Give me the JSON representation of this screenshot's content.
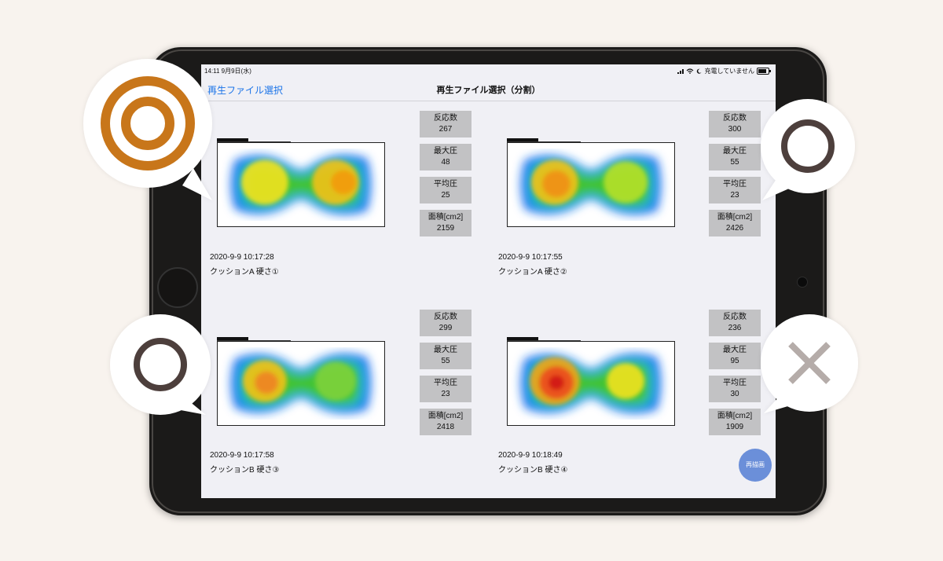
{
  "status_bar": {
    "time": "14:11  9月9日(水)",
    "charging": "充電していません"
  },
  "nav": {
    "back_label": "再生ファイル選択",
    "title": "再生ファイル選択（分割）"
  },
  "metric_labels": {
    "reactions": "反応数",
    "max_pressure": "最大圧",
    "avg_pressure": "平均圧",
    "area": "面積[cm2]"
  },
  "records": [
    {
      "timestamp": "2020-9-9 10:17:28",
      "name": "クッションA 硬さ①",
      "reactions": "267",
      "max_pressure": "48",
      "avg_pressure": "25",
      "area": "2159",
      "rating_icon": "double-circle-icon",
      "rating_color": "#c8761a"
    },
    {
      "timestamp": "2020-9-9 10:17:55",
      "name": "クッションA 硬さ②",
      "reactions": "300",
      "max_pressure": "55",
      "avg_pressure": "23",
      "area": "2426",
      "rating_icon": "circle-icon",
      "rating_color": "#4d3f3c"
    },
    {
      "timestamp": "2020-9-9 10:17:58",
      "name": "クッションB 硬さ③",
      "reactions": "299",
      "max_pressure": "55",
      "avg_pressure": "23",
      "area": "2418",
      "rating_icon": "circle-icon",
      "rating_color": "#4d3f3c"
    },
    {
      "timestamp": "2020-9-9 10:18:49",
      "name": "クッションB 硬さ④",
      "reactions": "236",
      "max_pressure": "95",
      "avg_pressure": "30",
      "area": "1909",
      "rating_icon": "cross-icon",
      "rating_color": "#b5aca9"
    }
  ],
  "redraw_label": "再描画",
  "colors": {
    "accent_blue": "#1a73e8",
    "button_blue": "#6b8fd9",
    "metric_bg": "#c2c2c4",
    "page_bg": "#f8f3ee"
  }
}
